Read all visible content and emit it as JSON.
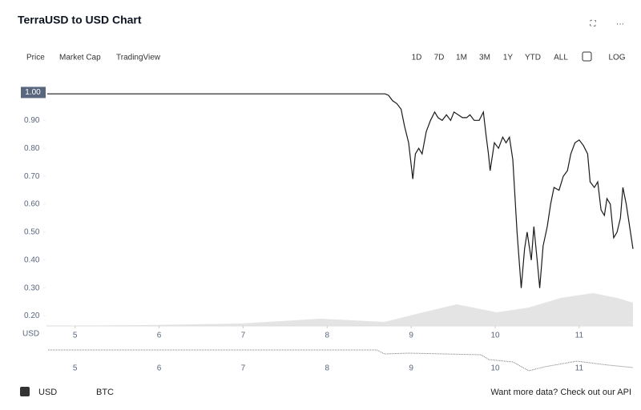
{
  "header": {
    "title": "TerraUSD to USD Chart",
    "tabs": [
      "Price",
      "Market Cap",
      "TradingView"
    ],
    "ranges": [
      "1D",
      "7D",
      "1M",
      "3M",
      "1Y",
      "YTD",
      "ALL"
    ],
    "log": "LOG"
  },
  "chart_data": {
    "type": "line",
    "y_label": "USD",
    "color": "#1a1a1a",
    "x": [
      4.67,
      6.0,
      7.5,
      8.69,
      8.73,
      8.78,
      8.83,
      8.88,
      8.92,
      8.97,
      9.02,
      9.05,
      9.09,
      9.13,
      9.18,
      9.23,
      9.28,
      9.32,
      9.37,
      9.42,
      9.47,
      9.51,
      9.56,
      9.61,
      9.66,
      9.7,
      9.75,
      9.81,
      9.86,
      9.89,
      9.92,
      9.94,
      9.99,
      10.04,
      10.09,
      10.13,
      10.17,
      10.21,
      10.26,
      10.31,
      10.35,
      10.38,
      10.43,
      10.46,
      10.5,
      10.53,
      10.57,
      10.62,
      10.66,
      10.7,
      10.76,
      10.81,
      10.86,
      10.9,
      10.95,
      11.0,
      11.05,
      11.1,
      11.13,
      11.18,
      11.22,
      11.26,
      11.3,
      11.33,
      11.37,
      11.41,
      11.45,
      11.49,
      11.52,
      11.56,
      11.6,
      11.64
    ],
    "values": [
      0.995,
      0.995,
      0.995,
      0.995,
      0.99,
      0.97,
      0.96,
      0.94,
      0.88,
      0.82,
      0.69,
      0.78,
      0.8,
      0.78,
      0.86,
      0.9,
      0.93,
      0.91,
      0.9,
      0.92,
      0.9,
      0.93,
      0.92,
      0.91,
      0.91,
      0.92,
      0.9,
      0.9,
      0.93,
      0.85,
      0.78,
      0.72,
      0.82,
      0.8,
      0.84,
      0.82,
      0.84,
      0.76,
      0.5,
      0.3,
      0.44,
      0.5,
      0.4,
      0.52,
      0.4,
      0.3,
      0.45,
      0.52,
      0.6,
      0.66,
      0.65,
      0.7,
      0.72,
      0.78,
      0.82,
      0.83,
      0.81,
      0.78,
      0.68,
      0.66,
      0.68,
      0.58,
      0.56,
      0.62,
      0.6,
      0.48,
      0.5,
      0.55,
      0.66,
      0.6,
      0.52,
      0.44
    ],
    "xlim": [
      4.66,
      11.64
    ],
    "xticks": [
      5,
      6,
      7,
      8,
      9,
      10,
      11
    ],
    "ylim": [
      0.17,
      1.03
    ],
    "yticks": [
      {
        "value": 0.2,
        "label": "0.20"
      },
      {
        "value": 0.3,
        "label": "0.30"
      },
      {
        "value": 0.4,
        "label": "0.40"
      },
      {
        "value": 0.5,
        "label": "0.50"
      },
      {
        "value": 0.6,
        "label": "0.60"
      },
      {
        "value": 0.7,
        "label": "0.70"
      },
      {
        "value": 0.8,
        "label": "0.80"
      },
      {
        "value": 0.9,
        "label": "0.90"
      }
    ],
    "current_price": {
      "value": 1.0,
      "label": "1.00"
    }
  },
  "footer": {
    "currencies": [
      "USD",
      "BTC"
    ],
    "api": "Want more data? Check out our API"
  }
}
